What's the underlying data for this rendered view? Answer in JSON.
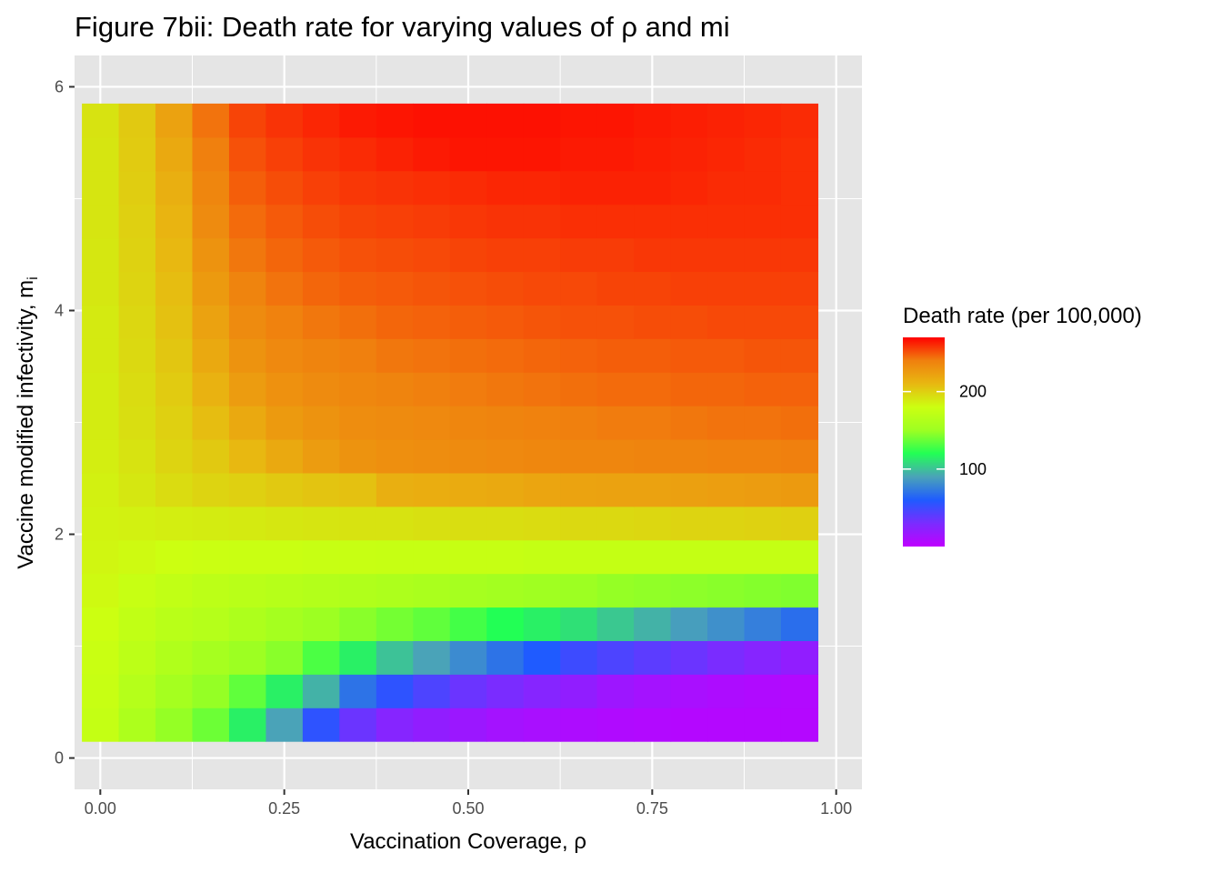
{
  "chart_data": {
    "type": "heatmap",
    "title": "Figure 7bii: Death rate for varying values of ρ and mi",
    "xlabel": "Vaccination Coverage,  ρ",
    "ylabel_main": "Vaccine modified infectivity, m",
    "ylabel_sub": "i",
    "x_ticks": [
      "0.00",
      "0.25",
      "0.50",
      "0.75",
      "1.00"
    ],
    "y_ticks": [
      "0",
      "2",
      "4",
      "6"
    ],
    "xlim": [
      -0.035,
      1.035
    ],
    "ylim": [
      -0.28,
      6.28
    ],
    "x": [
      0.0,
      0.05,
      0.1,
      0.15,
      0.2,
      0.25,
      0.3,
      0.35,
      0.4,
      0.45,
      0.5,
      0.55,
      0.6,
      0.65,
      0.7,
      0.75,
      0.8,
      0.85,
      0.9,
      0.95
    ],
    "y": [
      0.3,
      0.6,
      0.9,
      1.2,
      1.5,
      1.8,
      2.1,
      2.4,
      2.7,
      3.0,
      3.3,
      3.6,
      3.9,
      4.2,
      4.5,
      4.8,
      5.1,
      5.4,
      5.7
    ],
    "z": [
      [
        175,
        160,
        148,
        138,
        115,
        90,
        55,
        35,
        25,
        20,
        16,
        12,
        10,
        8,
        7,
        6,
        5,
        5,
        5,
        5
      ],
      [
        177,
        165,
        155,
        148,
        135,
        115,
        95,
        70,
        55,
        45,
        35,
        30,
        25,
        20,
        15,
        12,
        10,
        8,
        7,
        6
      ],
      [
        178,
        170,
        162,
        156,
        150,
        145,
        130,
        115,
        100,
        90,
        80,
        70,
        60,
        50,
        45,
        40,
        35,
        30,
        25,
        20
      ],
      [
        180,
        173,
        168,
        165,
        160,
        155,
        150,
        145,
        140,
        135,
        128,
        120,
        115,
        110,
        102,
        95,
        88,
        82,
        75,
        68
      ],
      [
        182,
        177,
        173,
        170,
        168,
        166,
        164,
        162,
        160,
        158,
        156,
        154,
        152,
        150,
        148,
        147,
        146,
        145,
        144,
        143
      ],
      [
        184,
        182,
        180,
        179,
        178,
        178,
        177,
        177,
        176,
        176,
        176,
        176,
        175,
        175,
        175,
        175,
        175,
        175,
        175,
        175
      ],
      [
        185,
        186,
        187,
        188,
        189,
        190,
        191,
        192,
        192,
        193,
        194,
        194,
        195,
        196,
        196,
        197,
        198,
        198,
        199,
        200
      ],
      [
        186,
        190,
        195,
        198,
        200,
        203,
        205,
        206,
        215,
        216,
        217,
        218,
        220,
        221,
        222,
        222,
        223,
        224,
        225,
        226
      ],
      [
        187,
        192,
        198,
        203,
        210,
        218,
        225,
        230,
        232,
        233,
        234,
        235,
        236,
        237,
        237,
        238,
        238,
        239,
        239,
        240
      ],
      [
        188,
        194,
        200,
        208,
        218,
        226,
        230,
        233,
        234,
        235,
        237,
        238,
        239,
        240,
        241,
        241,
        242,
        243,
        243,
        244
      ],
      [
        188,
        195,
        202,
        213,
        225,
        231,
        234,
        236,
        238,
        240,
        241,
        242,
        243,
        244,
        245,
        245,
        246,
        246,
        247,
        247
      ],
      [
        189,
        196,
        204,
        218,
        230,
        235,
        238,
        240,
        242,
        243,
        244,
        245,
        246,
        247,
        248,
        248,
        249,
        249,
        250,
        250
      ],
      [
        189,
        197,
        206,
        222,
        234,
        239,
        242,
        244,
        246,
        247,
        248,
        249,
        250,
        251,
        251,
        252,
        252,
        253,
        253,
        253
      ],
      [
        190,
        198,
        208,
        226,
        238,
        243,
        246,
        248,
        249,
        250,
        251,
        252,
        253,
        253,
        254,
        254,
        255,
        255,
        255,
        255
      ],
      [
        190,
        199,
        210,
        230,
        242,
        246,
        249,
        251,
        252,
        253,
        254,
        255,
        255,
        256,
        256,
        257,
        257,
        257,
        257,
        257
      ],
      [
        191,
        200,
        212,
        234,
        245,
        249,
        252,
        254,
        255,
        256,
        257,
        258,
        258,
        259,
        259,
        259,
        259,
        259,
        259,
        259
      ],
      [
        191,
        201,
        215,
        237,
        248,
        252,
        255,
        257,
        258,
        259,
        260,
        261,
        261,
        262,
        262,
        262,
        261,
        260,
        260,
        259
      ],
      [
        191,
        202,
        218,
        240,
        251,
        255,
        258,
        260,
        262,
        264,
        265,
        265,
        265,
        264,
        264,
        263,
        262,
        261,
        260,
        259
      ],
      [
        192,
        203,
        222,
        243,
        254,
        258,
        261,
        264,
        265,
        266,
        266,
        266,
        266,
        265,
        265,
        264,
        263,
        262,
        261,
        260
      ]
    ],
    "legend": {
      "title": "Death rate (per 100,000)",
      "labels": [
        "100",
        "200"
      ],
      "label_values": [
        100,
        200
      ],
      "range": [
        0,
        270
      ]
    },
    "colors": {
      "panel_bg": "#e5e5e5",
      "grid_major": "#ffffff",
      "tick": "#333333",
      "gradient": [
        "#c000ff",
        "#7a2cff",
        "#1f5bff",
        "#4aa3b8",
        "#22ff55",
        "#9dff22",
        "#ccff11",
        "#e8b811",
        "#f0800e",
        "#ff0000"
      ]
    }
  }
}
